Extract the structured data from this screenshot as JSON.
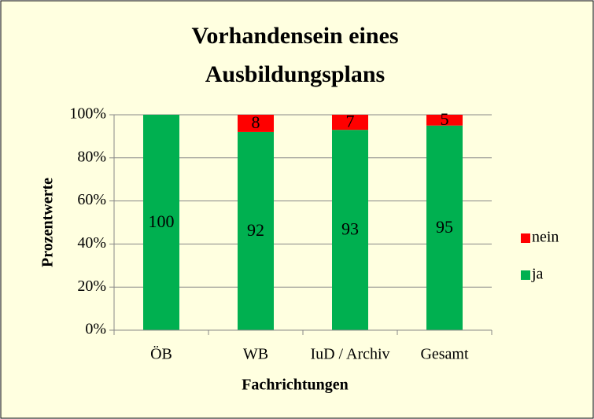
{
  "chart_data": {
    "type": "stacked_bar",
    "title": [
      "Vorhandensein eines",
      "Ausbildungsplans"
    ],
    "y_label": "Prozentwerte",
    "x_label": "Fachrichtungen",
    "categories": [
      "ÖB",
      "WB",
      "IuD / Archiv",
      "Gesamt"
    ],
    "series": [
      {
        "name": "ja",
        "color": "#00b050",
        "values": [
          100,
          92,
          93,
          95
        ]
      },
      {
        "name": "nein",
        "color": "#ff0000",
        "values": [
          0,
          8,
          7,
          5
        ]
      }
    ],
    "ylim": [
      0,
      100
    ],
    "yticks": [
      {
        "value": 0,
        "label": "0%"
      },
      {
        "value": 20,
        "label": "20%"
      },
      {
        "value": 40,
        "label": "40%"
      },
      {
        "value": 60,
        "label": "60%"
      },
      {
        "value": 80,
        "label": "80%"
      },
      {
        "value": 100,
        "label": "100%"
      }
    ],
    "grid": true,
    "legend": "right"
  }
}
